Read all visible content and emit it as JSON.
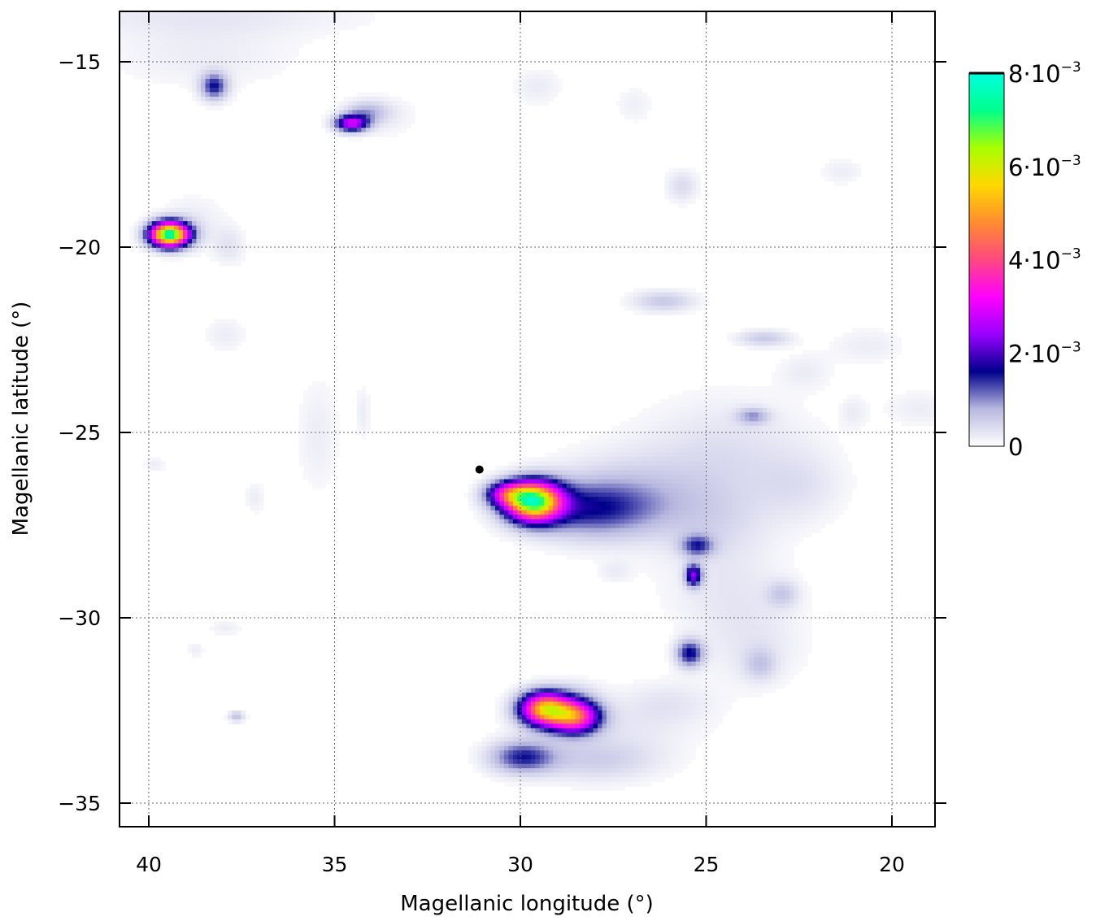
{
  "chart_data": {
    "type": "heatmap",
    "xlabel": "Magellanic longitude (°)",
    "ylabel": "Magellanic latitude (°)",
    "xlim": [
      41,
      18.8
    ],
    "ylim": [
      -35.6,
      -13.3
    ],
    "x_reversed": true,
    "xticks": [
      40,
      35,
      30,
      25,
      20
    ],
    "xtick_labels": [
      "40",
      "35",
      "30",
      "25",
      "20"
    ],
    "yticks": [
      -15,
      -20,
      -25,
      -30,
      -35
    ],
    "ytick_labels": [
      "−15",
      "−20",
      "−25",
      "−30",
      "−35"
    ],
    "grid": true,
    "colorbar": {
      "min": 0,
      "max": 0.008,
      "ticks": [
        {
          "value": 0,
          "mant": "0",
          "exp": ""
        },
        {
          "value": 0.002,
          "mant": "2·10",
          "exp": "−3"
        },
        {
          "value": 0.004,
          "mant": "4·10",
          "exp": "−3"
        },
        {
          "value": 0.006,
          "mant": "6·10",
          "exp": "−3"
        },
        {
          "value": 0.008,
          "mant": "8·10",
          "exp": "−3"
        }
      ],
      "colors": [
        "#ffffff",
        "#b8b8e0",
        "#00008c",
        "#9900ff",
        "#ff00ff",
        "#ff4880",
        "#ff8c30",
        "#ffd800",
        "#a8ff00",
        "#00ff8c",
        "#00ffe0"
      ]
    },
    "marker": {
      "lon": 31.1,
      "lat": -26.0
    },
    "sources": [
      {
        "lon": 39.5,
        "lat": -19.6,
        "sx": 0.35,
        "sy": 0.22,
        "amp": 0.0075
      },
      {
        "lon": 38.3,
        "lat": -15.6,
        "sx": 0.25,
        "sy": 0.25,
        "amp": 0.0015
      },
      {
        "lon": 34.6,
        "lat": -16.6,
        "sx": 0.3,
        "sy": 0.15,
        "amp": 0.0028
      },
      {
        "lon": 34.2,
        "lat": -16.3,
        "sx": 0.4,
        "sy": 0.2,
        "amp": 0.0007
      },
      {
        "lon": 29.7,
        "lat": -26.8,
        "sx": 0.5,
        "sy": 0.35,
        "amp": 0.0068
      },
      {
        "lon": 30.4,
        "lat": -26.6,
        "sx": 0.4,
        "sy": 0.22,
        "amp": 0.0025
      },
      {
        "lon": 28.3,
        "lat": -27.0,
        "sx": 1.2,
        "sy": 0.5,
        "amp": 0.0012
      },
      {
        "lon": 27.3,
        "lat": -26.8,
        "sx": 1.4,
        "sy": 0.8,
        "amp": 0.0004
      },
      {
        "lon": 25.3,
        "lat": -28.0,
        "sx": 0.3,
        "sy": 0.2,
        "amp": 0.0012
      },
      {
        "lon": 25.4,
        "lat": -28.8,
        "sx": 0.15,
        "sy": 0.2,
        "amp": 0.0022
      },
      {
        "lon": 25.5,
        "lat": -30.9,
        "sx": 0.25,
        "sy": 0.25,
        "amp": 0.0016
      },
      {
        "lon": 29.4,
        "lat": -32.4,
        "sx": 0.45,
        "sy": 0.3,
        "amp": 0.0052
      },
      {
        "lon": 28.6,
        "lat": -32.6,
        "sx": 0.45,
        "sy": 0.3,
        "amp": 0.0042
      },
      {
        "lon": 30.0,
        "lat": -33.7,
        "sx": 0.6,
        "sy": 0.3,
        "amp": 0.0014
      },
      {
        "lon": 28.0,
        "lat": -33.8,
        "sx": 1.2,
        "sy": 0.4,
        "amp": 0.0005
      },
      {
        "lon": 23.8,
        "lat": -24.5,
        "sx": 0.3,
        "sy": 0.15,
        "amp": 0.0008
      },
      {
        "lon": 26.2,
        "lat": -21.4,
        "sx": 0.6,
        "sy": 0.2,
        "amp": 0.0006
      },
      {
        "lon": 23.5,
        "lat": -22.4,
        "sx": 0.5,
        "sy": 0.15,
        "amp": 0.0006
      },
      {
        "lon": 23.0,
        "lat": -29.3,
        "sx": 0.3,
        "sy": 0.25,
        "amp": 0.0005
      },
      {
        "lon": 23.6,
        "lat": -31.2,
        "sx": 0.3,
        "sy": 0.3,
        "amp": 0.0005
      },
      {
        "lon": 37.7,
        "lat": -32.6,
        "sx": 0.15,
        "sy": 0.1,
        "amp": 0.0007
      },
      {
        "lon": 25.7,
        "lat": -18.3,
        "sx": 0.3,
        "sy": 0.3,
        "amp": 0.0004
      }
    ],
    "diffuse": [
      {
        "lon": 38.5,
        "lat": -13.7,
        "sx": 3.0,
        "sy": 0.4,
        "amp": 0.00025
      },
      {
        "lon": 38.6,
        "lat": -14.8,
        "sx": 1.8,
        "sy": 0.6,
        "amp": 0.0002
      },
      {
        "lon": 33.8,
        "lat": -16.4,
        "sx": 0.7,
        "sy": 0.4,
        "amp": 0.0002
      },
      {
        "lon": 29.6,
        "lat": -15.6,
        "sx": 0.45,
        "sy": 0.35,
        "amp": 0.00022
      },
      {
        "lon": 27.0,
        "lat": -16.1,
        "sx": 0.35,
        "sy": 0.35,
        "amp": 0.00018
      },
      {
        "lon": 21.4,
        "lat": -17.9,
        "sx": 0.4,
        "sy": 0.25,
        "amp": 0.0002
      },
      {
        "lon": 38.9,
        "lat": -19.3,
        "sx": 0.6,
        "sy": 0.5,
        "amp": 0.00025
      },
      {
        "lon": 37.9,
        "lat": -19.9,
        "sx": 0.3,
        "sy": 0.35,
        "amp": 0.0003
      },
      {
        "lon": 38.0,
        "lat": -22.3,
        "sx": 0.4,
        "sy": 0.35,
        "amp": 0.0002
      },
      {
        "lon": 35.5,
        "lat": -25.0,
        "sx": 0.4,
        "sy": 1.1,
        "amp": 0.0002
      },
      {
        "lon": 39.9,
        "lat": -25.8,
        "sx": 0.2,
        "sy": 0.15,
        "amp": 0.0002
      },
      {
        "lon": 37.2,
        "lat": -26.7,
        "sx": 0.2,
        "sy": 0.3,
        "amp": 0.0002
      },
      {
        "lon": 34.3,
        "lat": -24.4,
        "sx": 0.15,
        "sy": 0.5,
        "amp": 0.0002
      },
      {
        "lon": 24.5,
        "lat": -25.3,
        "sx": 1.6,
        "sy": 1.0,
        "amp": 0.0003
      },
      {
        "lon": 26.0,
        "lat": -26.5,
        "sx": 2.0,
        "sy": 0.8,
        "amp": 0.00025
      },
      {
        "lon": 24.8,
        "lat": -27.5,
        "sx": 1.0,
        "sy": 0.7,
        "amp": 0.0003
      },
      {
        "lon": 24.5,
        "lat": -29.2,
        "sx": 1.2,
        "sy": 0.8,
        "amp": 0.00025
      },
      {
        "lon": 23.8,
        "lat": -30.7,
        "sx": 1.0,
        "sy": 0.8,
        "amp": 0.00025
      },
      {
        "lon": 22.5,
        "lat": -26.4,
        "sx": 0.8,
        "sy": 0.7,
        "amp": 0.00025
      },
      {
        "lon": 22.4,
        "lat": -23.3,
        "sx": 0.5,
        "sy": 0.35,
        "amp": 0.0002
      },
      {
        "lon": 20.7,
        "lat": -22.6,
        "sx": 0.7,
        "sy": 0.35,
        "amp": 0.0002
      },
      {
        "lon": 21.1,
        "lat": -24.4,
        "sx": 0.25,
        "sy": 0.3,
        "amp": 0.0002
      },
      {
        "lon": 19.3,
        "lat": -24.3,
        "sx": 0.7,
        "sy": 0.35,
        "amp": 0.0002
      },
      {
        "lon": 27.5,
        "lat": -28.7,
        "sx": 0.3,
        "sy": 0.2,
        "amp": 0.0002
      },
      {
        "lon": 27.5,
        "lat": -32.8,
        "sx": 1.6,
        "sy": 0.6,
        "amp": 0.00025
      },
      {
        "lon": 26.0,
        "lat": -32.2,
        "sx": 0.8,
        "sy": 0.4,
        "amp": 0.00022
      },
      {
        "lon": 28.6,
        "lat": -31.9,
        "sx": 0.5,
        "sy": 0.25,
        "amp": 0.0002
      },
      {
        "lon": 38.0,
        "lat": -30.2,
        "sx": 0.3,
        "sy": 0.15,
        "amp": 0.0002
      },
      {
        "lon": 38.8,
        "lat": -30.8,
        "sx": 0.15,
        "sy": 0.15,
        "amp": 0.0002
      }
    ]
  }
}
